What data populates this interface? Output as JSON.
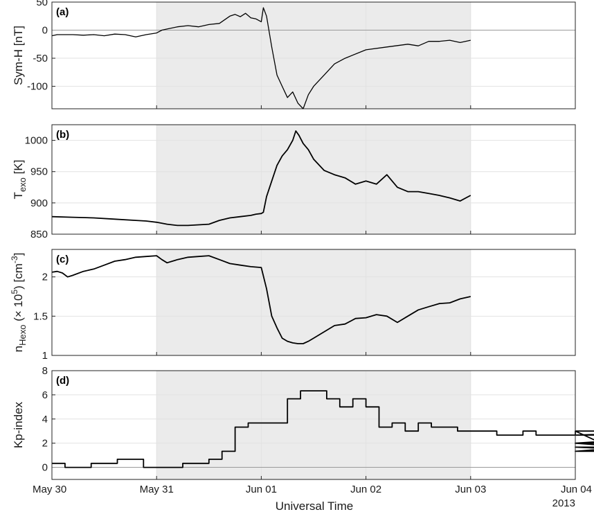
{
  "chart_data": [
    {
      "type": "line",
      "panel_label": "(a)",
      "ylabel": "Sym-H [nT]",
      "ylim": [
        -140,
        50
      ],
      "yticks": [
        50,
        0,
        -50,
        -100
      ],
      "grid": true,
      "line_width": 1.3,
      "shaded_interval": [
        1,
        4
      ],
      "zero_line": 0,
      "series": [
        {
          "x": [
            0,
            0.05,
            0.1,
            0.2,
            0.3,
            0.4,
            0.5,
            0.6,
            0.7,
            0.8,
            0.9,
            1.0,
            1.05,
            1.1,
            1.2,
            1.3,
            1.4,
            1.5,
            1.6,
            1.7,
            1.75,
            1.8,
            1.85,
            1.9,
            1.95,
            2.0,
            2.02,
            2.05,
            2.1,
            2.15,
            2.2,
            2.25,
            2.3,
            2.35,
            2.4,
            2.45,
            2.5,
            2.6,
            2.7,
            2.8,
            3.0,
            3.2,
            3.4,
            3.5,
            3.6,
            3.7,
            3.8,
            3.9,
            4.0
          ],
          "values": [
            -10,
            -8,
            -8,
            -8,
            -9,
            -8,
            -10,
            -7,
            -8,
            -12,
            -8,
            -5,
            0,
            2,
            6,
            8,
            6,
            10,
            12,
            25,
            28,
            24,
            30,
            22,
            20,
            15,
            40,
            25,
            -30,
            -80,
            -100,
            -120,
            -110,
            -130,
            -140,
            -115,
            -100,
            -80,
            -60,
            -50,
            -35,
            -30,
            -25,
            -28,
            -20,
            -20,
            -18,
            -22,
            -18
          ]
        }
      ]
    },
    {
      "type": "line",
      "panel_label": "(b)",
      "ylabel": "T",
      "ylabel_sub": "exo",
      "ylabel_unit": "[K]",
      "ylim": [
        850,
        1025
      ],
      "yticks": [
        1000,
        950,
        900,
        850
      ],
      "grid": true,
      "line_width": 1.8,
      "shaded_interval": [
        1,
        4
      ],
      "series": [
        {
          "x": [
            0,
            0.2,
            0.4,
            0.6,
            0.8,
            0.9,
            1.0,
            1.1,
            1.2,
            1.3,
            1.5,
            1.6,
            1.7,
            1.8,
            1.9,
            1.95,
            2.0,
            2.02,
            2.05,
            2.1,
            2.15,
            2.2,
            2.25,
            2.3,
            2.33,
            2.36,
            2.4,
            2.45,
            2.5,
            2.6,
            2.7,
            2.8,
            2.9,
            3.0,
            3.1,
            3.2,
            3.3,
            3.4,
            3.5,
            3.6,
            3.7,
            3.8,
            3.9,
            4.0
          ],
          "values": [
            878,
            877,
            876,
            874,
            872,
            871,
            869,
            866,
            864,
            864,
            866,
            872,
            876,
            878,
            880,
            882,
            883,
            885,
            910,
            935,
            960,
            975,
            985,
            1000,
            1015,
            1008,
            995,
            985,
            970,
            952,
            945,
            940,
            930,
            935,
            930,
            945,
            925,
            918,
            918,
            915,
            912,
            908,
            903,
            912
          ]
        }
      ]
    },
    {
      "type": "line",
      "panel_label": "(c)",
      "ylabel": "n",
      "ylabel_sub": "Hexo",
      "ylabel_unit": "(× 10",
      "ylabel_sup": "5",
      "ylabel_tail": ") [cm",
      "ylabel_sup2": "-3",
      "ylabel_end": "]",
      "ylim": [
        1,
        2.35
      ],
      "yticks": [
        2,
        1.5,
        1
      ],
      "grid": true,
      "line_width": 1.8,
      "shaded_interval": [
        1,
        4
      ],
      "series": [
        {
          "x": [
            0,
            0.05,
            0.1,
            0.15,
            0.2,
            0.3,
            0.4,
            0.5,
            0.6,
            0.7,
            0.8,
            0.9,
            1.0,
            1.05,
            1.1,
            1.15,
            1.2,
            1.3,
            1.4,
            1.5,
            1.6,
            1.7,
            1.8,
            1.9,
            2.0,
            2.05,
            2.1,
            2.15,
            2.2,
            2.25,
            2.3,
            2.35,
            2.4,
            2.45,
            2.5,
            2.6,
            2.7,
            2.8,
            2.9,
            3.0,
            3.1,
            3.2,
            3.3,
            3.4,
            3.5,
            3.6,
            3.7,
            3.8,
            3.9,
            4.0
          ],
          "values": [
            2.06,
            2.07,
            2.05,
            2.0,
            2.02,
            2.07,
            2.1,
            2.15,
            2.2,
            2.22,
            2.25,
            2.26,
            2.27,
            2.22,
            2.18,
            2.2,
            2.22,
            2.25,
            2.26,
            2.27,
            2.22,
            2.17,
            2.15,
            2.13,
            2.12,
            1.85,
            1.5,
            1.35,
            1.22,
            1.18,
            1.16,
            1.15,
            1.15,
            1.18,
            1.22,
            1.3,
            1.38,
            1.4,
            1.47,
            1.48,
            1.52,
            1.5,
            1.42,
            1.5,
            1.58,
            1.62,
            1.66,
            1.67,
            1.72,
            1.75
          ]
        }
      ]
    },
    {
      "type": "line",
      "panel_label": "(d)",
      "ylabel": "Kp-index",
      "ylim": [
        -1,
        8
      ],
      "yticks": [
        8,
        6,
        4,
        2,
        0
      ],
      "grid": true,
      "line_width": 1.8,
      "shaded_interval": [
        1,
        4
      ],
      "zero_line": 0,
      "step": true,
      "series": [
        {
          "x_start": 0,
          "x_step": 0.125,
          "values": [
            0.33,
            0,
            0,
            0.33,
            0.33,
            0.67,
            0.67,
            0,
            0,
            0,
            0.33,
            0.33,
            0.67,
            1.33,
            3.33,
            3.67,
            3.67,
            3.67,
            5.67,
            6.33,
            6.33,
            5.67,
            5.0,
            5.67,
            5.0,
            3.33,
            3.67,
            3.0,
            3.67,
            3.33,
            3.33,
            3.0,
            3.0,
            3.0,
            2.67,
            2.67,
            3.0,
            2.67,
            2.67,
            2.67,
            3.0,
            3.0,
            2.0,
            2.0,
            1.67,
            1.67,
            1.67,
            1.33,
            2.0,
            2.67,
            3.0,
            3.0
          ]
        }
      ]
    }
  ],
  "x_axis": {
    "xlim": [
      0,
      4
    ],
    "ticks": [
      {
        "value": 0,
        "label": "May 30"
      },
      {
        "value": 1,
        "label": "May 31"
      },
      {
        "value": 2,
        "label": "Jun 01"
      },
      {
        "value": 3,
        "label": "Jun 02"
      },
      {
        "value": 4,
        "label": "Jun 03"
      },
      {
        "value": 5,
        "label": "Jun 04"
      }
    ],
    "xlabel": "Universal Time",
    "year_label": "2013"
  },
  "colors": {
    "shade": "#ebebeb",
    "line": "#000000",
    "grid": "#e2e2e2",
    "zero_line": "#9a9a9a"
  }
}
